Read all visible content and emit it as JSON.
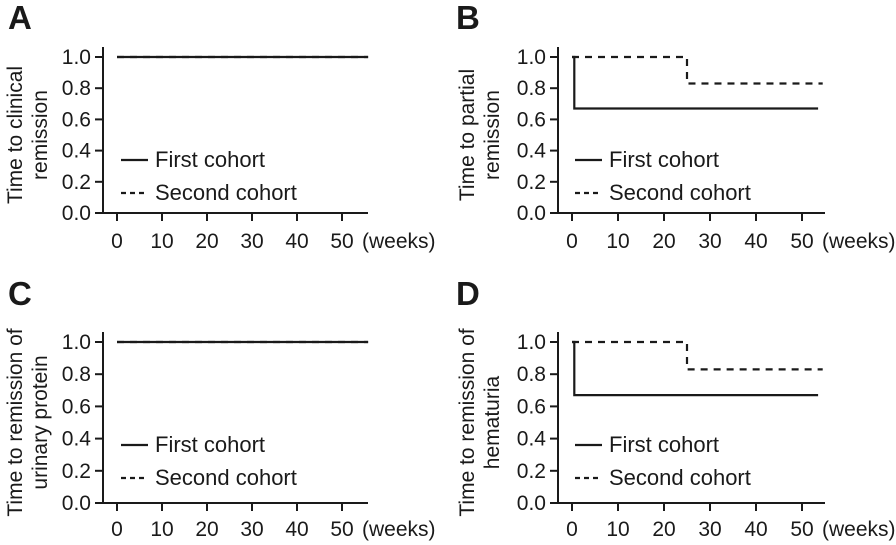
{
  "figure": {
    "background": "#ffffff",
    "ink": "#1a1a1a",
    "line_width": 2.2,
    "legend_styles": {
      "solid_dash": "none",
      "dashed_dash": "7,6",
      "legend_sample_dash": "5,4"
    }
  },
  "chart_data": [
    {
      "type": "line",
      "subtype": "step",
      "panel_label": "A",
      "ylabel_lines": [
        "Time to clinical",
        "remission"
      ],
      "xlabel": "(weeks)",
      "xticks": [
        0,
        10,
        20,
        30,
        40,
        50
      ],
      "yticks": [
        "1.0",
        "0.8",
        "0.6",
        "0.4",
        "0.2",
        "0.0"
      ],
      "xlim": [
        0,
        55.8
      ],
      "ylim": [
        0.0,
        1.0
      ],
      "series": [
        {
          "name": "First cohort",
          "style": "solid",
          "points": [
            [
              0,
              1.0
            ],
            [
              55.8,
              1.0
            ]
          ]
        },
        {
          "name": "Second cohort",
          "style": "dashed",
          "points": [
            [
              0,
              1.0
            ],
            [
              55.8,
              1.0
            ]
          ]
        }
      ]
    },
    {
      "type": "line",
      "subtype": "step",
      "panel_label": "B",
      "ylabel_lines": [
        "Time to partial",
        "remission"
      ],
      "xlabel": "(weeks)",
      "xticks": [
        0,
        10,
        20,
        30,
        40,
        50
      ],
      "yticks": [
        "1.0",
        "0.8",
        "0.6",
        "0.4",
        "0.2",
        "0.0"
      ],
      "xlim": [
        0,
        55
      ],
      "ylim": [
        0.0,
        1.0
      ],
      "series": [
        {
          "name": "First cohort",
          "style": "solid",
          "points": [
            [
              0,
              1.0
            ],
            [
              0.5,
              1.0
            ],
            [
              0.5,
              0.67
            ],
            [
              53.5,
              0.67
            ]
          ]
        },
        {
          "name": "Second cohort",
          "style": "dashed",
          "points": [
            [
              0,
              1.0
            ],
            [
              25,
              1.0
            ],
            [
              25,
              0.83
            ],
            [
              54.5,
              0.83
            ]
          ]
        }
      ]
    },
    {
      "type": "line",
      "subtype": "step",
      "panel_label": "C",
      "ylabel_lines": [
        "Time to remission of",
        "urinary protein"
      ],
      "xlabel": "(weeks)",
      "xticks": [
        0,
        10,
        20,
        30,
        40,
        50
      ],
      "yticks": [
        "1.0",
        "0.8",
        "0.6",
        "0.4",
        "0.2",
        "0.0"
      ],
      "xlim": [
        0,
        55.8
      ],
      "ylim": [
        0.0,
        1.0
      ],
      "series": [
        {
          "name": "First cohort",
          "style": "solid",
          "points": [
            [
              0,
              1.0
            ],
            [
              55.8,
              1.0
            ]
          ]
        },
        {
          "name": "Second cohort",
          "style": "dashed",
          "points": [
            [
              0,
              1.0
            ],
            [
              55.8,
              1.0
            ]
          ]
        }
      ]
    },
    {
      "type": "line",
      "subtype": "step",
      "panel_label": "D",
      "ylabel_lines": [
        "Time to remission of",
        "hematuria"
      ],
      "xlabel": "(weeks)",
      "xticks": [
        0,
        10,
        20,
        30,
        40,
        50
      ],
      "yticks": [
        "1.0",
        "0.8",
        "0.6",
        "0.4",
        "0.2",
        "0.0"
      ],
      "xlim": [
        0,
        55
      ],
      "ylim": [
        0.0,
        1.0
      ],
      "series": [
        {
          "name": "First cohort",
          "style": "solid",
          "points": [
            [
              0,
              1.0
            ],
            [
              0.5,
              1.0
            ],
            [
              0.5,
              0.67
            ],
            [
              53.5,
              0.67
            ]
          ]
        },
        {
          "name": "Second cohort",
          "style": "dashed",
          "points": [
            [
              0,
              1.0
            ],
            [
              25,
              1.0
            ],
            [
              25,
              0.83
            ],
            [
              54.5,
              0.83
            ]
          ]
        }
      ]
    }
  ]
}
